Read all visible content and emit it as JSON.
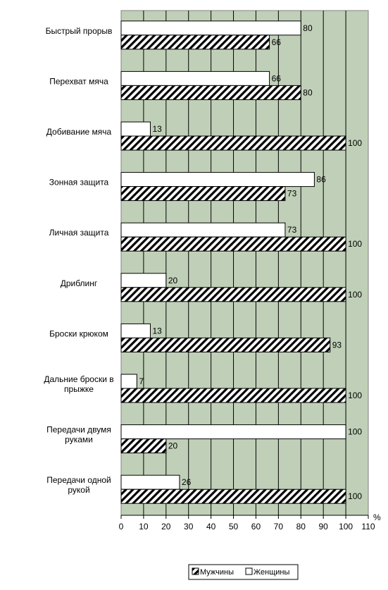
{
  "chart_data": {
    "type": "bar",
    "orientation": "horizontal",
    "categories": [
      "Быстрый прорыв",
      "Перехват мяча",
      "Добивание мяча",
      "Зонная защита",
      "Личная защита",
      "Дриблинг",
      "Броски крюком",
      "Дальние броски в прыжке",
      "Передачи двумя руками",
      "Передачи одной рукой"
    ],
    "series": [
      {
        "name": "Женщины",
        "values": [
          80,
          66,
          13,
          86,
          73,
          20,
          13,
          7,
          100,
          26
        ]
      },
      {
        "name": "Мужчины",
        "values": [
          66,
          80,
          100,
          73,
          100,
          100,
          93,
          100,
          20,
          100
        ]
      }
    ],
    "xlim": [
      0,
      110
    ],
    "xticks": [
      "0",
      "10",
      "20",
      "30",
      "40",
      "50",
      "60",
      "70",
      "80",
      "90",
      "100",
      "110"
    ],
    "unit_label": "%",
    "grid": true,
    "legend_position": "bottom",
    "colors": {
      "plot_background": "#c0d0b8",
      "women_fill": "#ffffff",
      "men_fill": "hatched",
      "bar_stroke": "#000000"
    }
  }
}
